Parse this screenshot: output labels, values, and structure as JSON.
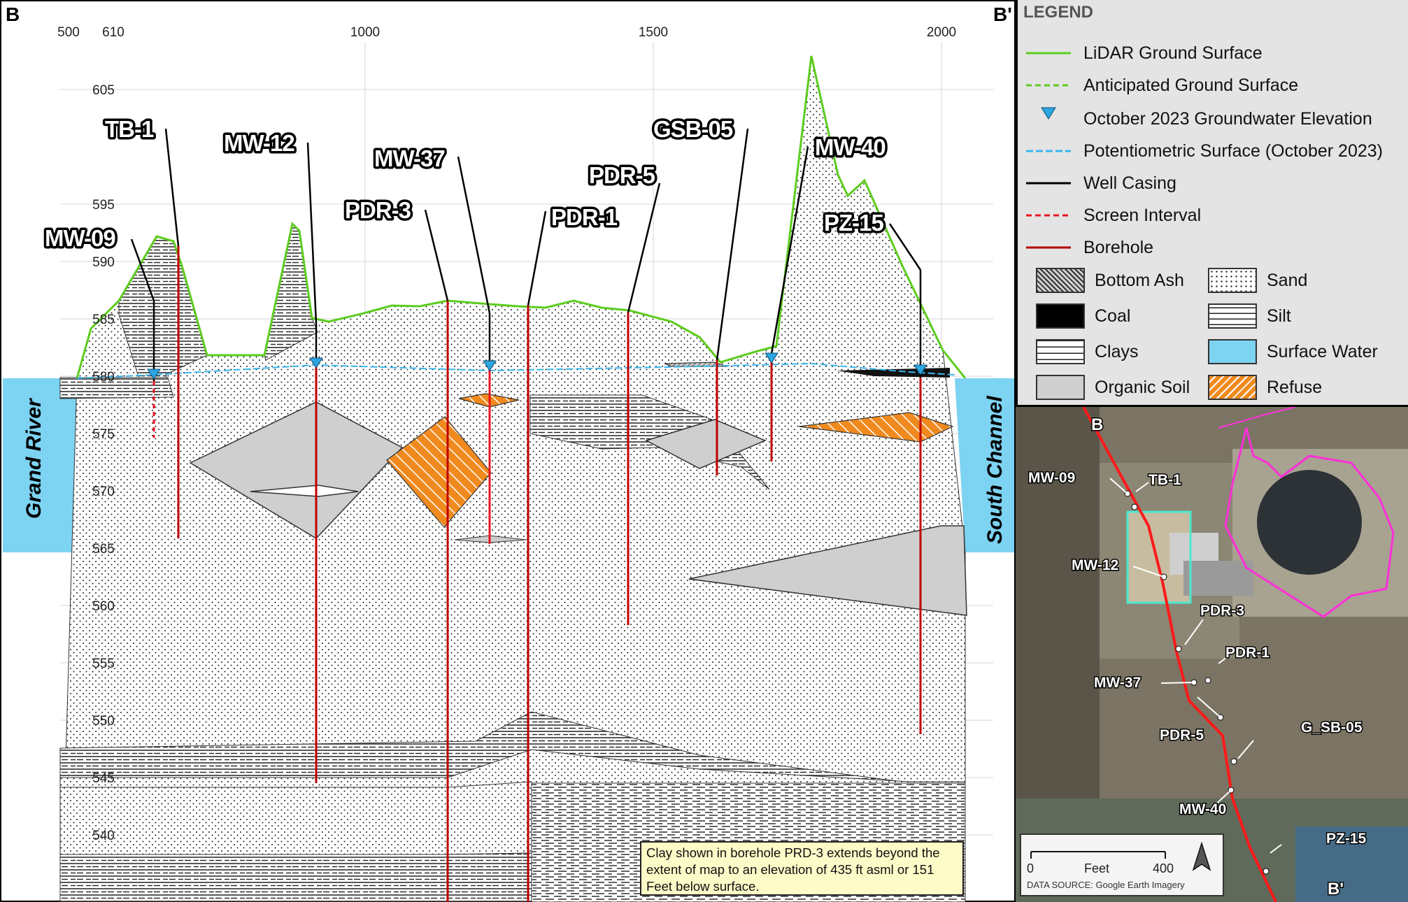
{
  "section": {
    "start_label": "B",
    "end_label": "B'",
    "left_water_label": "Grand River",
    "right_water_label": "South Channel",
    "x_ticks": [
      "500",
      "1000",
      "1500",
      "2000"
    ],
    "x_first_tick": "610",
    "y_ticks": [
      "605",
      "595",
      "590",
      "585",
      "580",
      "575",
      "570",
      "565",
      "560",
      "555",
      "550",
      "545",
      "540"
    ],
    "wells": [
      {
        "name": "TB-1"
      },
      {
        "name": "MW-12"
      },
      {
        "name": "MW-37"
      },
      {
        "name": "PDR-5"
      },
      {
        "name": "GSB-05"
      },
      {
        "name": "MW-40"
      },
      {
        "name": "PDR-3"
      },
      {
        "name": "PDR-1"
      },
      {
        "name": "MW-09"
      },
      {
        "name": "PZ-15"
      }
    ],
    "note": "Clay shown in borehole PRD-3 extends beyond the extent of map to an elevation of 435 ft asml or 151 Feet below surface."
  },
  "legend": {
    "title": "LEGEND",
    "lines": [
      {
        "label": "LiDAR Ground Surface",
        "color": "#5ccc1e"
      },
      {
        "label": "Anticipated Ground Surface",
        "color": "#5ccc1e"
      },
      {
        "label": "October 2023 Groundwater Elevation",
        "color": "#2ea6e0"
      },
      {
        "label": "Potentiometric Surface (October 2023)",
        "color": "#39b6ee"
      },
      {
        "label": "Well Casing",
        "color": "#000000"
      },
      {
        "label": "Screen Interval",
        "color": "#e8141c"
      },
      {
        "label": "Borehole",
        "color": "#b30000"
      }
    ],
    "patterns": [
      {
        "label": "Bottom Ash"
      },
      {
        "label": "Sand"
      },
      {
        "label": "Coal"
      },
      {
        "label": "Silt"
      },
      {
        "label": "Clays"
      },
      {
        "label": "Surface Water"
      },
      {
        "label": "Organic Soil"
      },
      {
        "label": "Refuse"
      }
    ]
  },
  "inset_map": {
    "start_label": "B",
    "end_label": "B'",
    "wells": [
      "MW-09",
      "TB-1",
      "MW-12",
      "PDR-3",
      "PDR-1",
      "MW-37",
      "PDR-5",
      "G_SB-05",
      "MW-40",
      "PZ-15"
    ],
    "scale_min": "0",
    "scale_unit": "Feet",
    "scale_max": "400",
    "source": "DATA SOURCE: Google Earth Imagery"
  }
}
